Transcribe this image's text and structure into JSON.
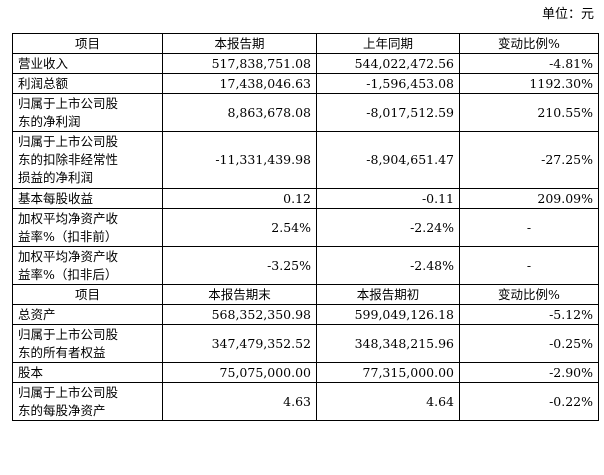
{
  "unit": "单位：元",
  "section1": {
    "headers": [
      "项目",
      "本报告期",
      "上年同期",
      "变动比例%"
    ],
    "rows": [
      {
        "label": [
          "营业收入"
        ],
        "current": "517,838,751.08",
        "prior": "544,022,472.56",
        "change": "-4.81%"
      },
      {
        "label": [
          "利润总额"
        ],
        "current": "17,438,046.63",
        "prior": "-1,596,453.08",
        "change": "1192.30%"
      },
      {
        "label": [
          "归属于上市公司股",
          "东的净利润"
        ],
        "current": "8,863,678.08",
        "prior": "-8,017,512.59",
        "change": "210.55%"
      },
      {
        "label": [
          "归属于上市公司股",
          "东的扣除非经常性",
          "损益的净利润"
        ],
        "current": "-11,331,439.98",
        "prior": "-8,904,651.47",
        "change": "-27.25%"
      },
      {
        "label": [
          "基本每股收益"
        ],
        "current": "0.12",
        "prior": "-0.11",
        "change": "209.09%"
      },
      {
        "label": [
          "加权平均净资产收",
          "益率%（扣非前）"
        ],
        "current": "2.54%",
        "prior": "-2.24%",
        "change": "-"
      },
      {
        "label": [
          "加权平均净资产收",
          "益率%（扣非后）"
        ],
        "current": "-3.25%",
        "prior": "-2.48%",
        "change": "-"
      }
    ]
  },
  "section2": {
    "headers": [
      "项目",
      "本报告期末",
      "本报告期初",
      "变动比例%"
    ],
    "rows": [
      {
        "label": [
          "总资产"
        ],
        "current": "568,352,350.98",
        "prior": "599,049,126.18",
        "change": "-5.12%"
      },
      {
        "label": [
          "归属于上市公司股",
          "东的所有者权益"
        ],
        "current": "347,479,352.52",
        "prior": "348,348,215.96",
        "change": "-0.25%"
      },
      {
        "label": [
          "股本"
        ],
        "current": "75,075,000.00",
        "prior": "77,315,000.00",
        "change": "-2.90%"
      },
      {
        "label": [
          "归属于上市公司股",
          "东的每股净资产"
        ],
        "current": "4.63",
        "prior": "4.64",
        "change": "-0.22%"
      }
    ]
  }
}
